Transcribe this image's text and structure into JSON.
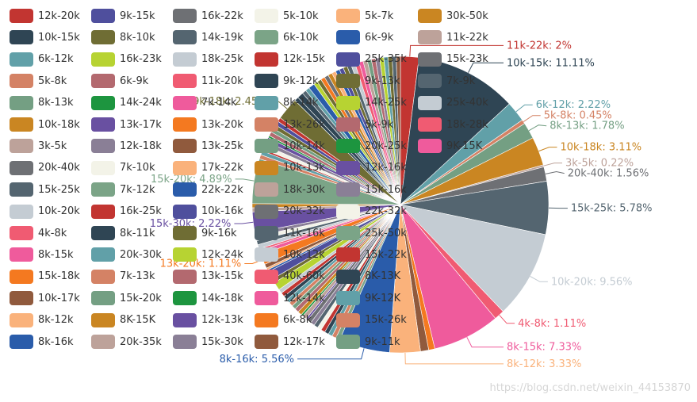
{
  "chart_data": {
    "type": "pie",
    "title": "",
    "slices": [
      {
        "name": "11k-22k",
        "value": 2,
        "color": "#c23531"
      },
      {
        "name": "10k-15k",
        "value": 11.11,
        "color": "#2f4554"
      },
      {
        "name": "6k-12k",
        "value": 2.22,
        "color": "#61a0a8"
      },
      {
        "name": "5k-8k",
        "value": 0.45,
        "color": "#d48265"
      },
      {
        "name": "8k-13k",
        "value": 1.78,
        "color": "#749f83"
      },
      {
        "name": "10k-18k",
        "value": 3.11,
        "color": "#ca8622"
      },
      {
        "name": "3k-5k",
        "value": 0.22,
        "color": "#bda29a"
      },
      {
        "name": "20k-40k",
        "value": 1.56,
        "color": "#6e7074"
      },
      {
        "name": "15k-25k",
        "value": 5.78,
        "color": "#546570"
      },
      {
        "name": "10k-20k",
        "value": 9.56,
        "color": "#c4ccd3"
      },
      {
        "name": "4k-8k",
        "value": 1.11,
        "color": "#f05b72"
      },
      {
        "name": "8k-15k",
        "value": 7.33,
        "color": "#ef5b9c"
      },
      {
        "name": "15k-18k",
        "value": 0.67,
        "color": "#f47920"
      },
      {
        "name": "10k-17k",
        "value": 0.89,
        "color": "#905a3d"
      },
      {
        "name": "8k-12k",
        "value": 3.33,
        "color": "#fab27b"
      },
      {
        "name": "8k-16k",
        "value": 5.56,
        "color": "#2a5caa"
      },
      {
        "name": "9k-11k",
        "value": 0.45,
        "color": "#7ba487"
      },
      {
        "name": "15k-26k",
        "value": 0.45,
        "color": "#d48265"
      },
      {
        "name": "9K-12K",
        "value": 0.45,
        "color": "#61a0a8"
      },
      {
        "name": "8K-13K",
        "value": 0.45,
        "color": "#2f4554"
      },
      {
        "name": "15k-22k",
        "value": 0.45,
        "color": "#c23531"
      },
      {
        "name": "25k-50k",
        "value": 0.45,
        "color": "#f3f3e8"
      },
      {
        "name": "11k-16k",
        "value": 0.45,
        "color": "#546570"
      },
      {
        "name": "22k-32k",
        "value": 0.45,
        "color": "#8a7f96"
      },
      {
        "name": "20k-32k",
        "value": 0.45,
        "color": "#6e7074"
      },
      {
        "name": "15k-16k",
        "value": 0.22,
        "color": "#6950a1"
      },
      {
        "name": "18k-30k",
        "value": 0.45,
        "color": "#bda29a"
      },
      {
        "name": "12k-16k",
        "value": 0.22,
        "color": "#1d953f"
      },
      {
        "name": "10k-13k",
        "value": 0.45,
        "color": "#ca8622"
      },
      {
        "name": "20k-25k",
        "value": 0.45,
        "color": "#b3696f"
      },
      {
        "name": "10k-14k",
        "value": 0.45,
        "color": "#749f83"
      },
      {
        "name": "13k-26k",
        "value": 0.45,
        "color": "#d48265"
      },
      {
        "name": "8k-14k",
        "value": 0.45,
        "color": "#61a0a8"
      },
      {
        "name": "9k-12k",
        "value": 0.45,
        "color": "#2f4554"
      },
      {
        "name": "12k-15k",
        "value": 0.45,
        "color": "#c23531"
      },
      {
        "name": "10k-12k",
        "value": 0.45,
        "color": "#c4ccd3"
      },
      {
        "name": "12k-24k",
        "value": 0.89,
        "color": "#b7d332"
      },
      {
        "name": "9k-16k",
        "value": 0.45,
        "color": "#6f6d34"
      },
      {
        "name": "10k-16k",
        "value": 0.89,
        "color": "#4f4f9d"
      },
      {
        "name": "22k-22k",
        "value": 0.22,
        "color": "#2a5caa"
      },
      {
        "name": "17k-22k",
        "value": 0.22,
        "color": "#fab27b"
      },
      {
        "name": "13k-25k",
        "value": 0.45,
        "color": "#905a3d"
      },
      {
        "name": "13k-20k",
        "value": 1.11,
        "color": "#f47920"
      },
      {
        "name": "7k-14k",
        "value": 0.45,
        "color": "#ef5b9c"
      },
      {
        "name": "11k-20k",
        "value": 0.22,
        "color": "#f05b72"
      },
      {
        "name": "18k-25k",
        "value": 0.45,
        "color": "#c4ccd3"
      },
      {
        "name": "14k-19k",
        "value": 0.45,
        "color": "#546570"
      },
      {
        "name": "6k-10k",
        "value": 0.45,
        "color": "#f3f3e8"
      },
      {
        "name": "5k-10k",
        "value": 0.45,
        "color": "#8a7f96"
      },
      {
        "name": "15k-30k",
        "value": 2.22,
        "color": "#6950a1"
      },
      {
        "name": "20k-35k",
        "value": 0.45,
        "color": "#bda29a"
      },
      {
        "name": "8K-15K",
        "value": 0.45,
        "color": "#ca8622"
      },
      {
        "name": "15k-20k",
        "value": 4.89,
        "color": "#7ba487"
      },
      {
        "name": "7k-13k",
        "value": 0.45,
        "color": "#d48265"
      },
      {
        "name": "20k-30k",
        "value": 0.45,
        "color": "#61a0a8"
      },
      {
        "name": "16k-25k",
        "value": 0.22,
        "color": "#c23531"
      },
      {
        "name": "7k-12k",
        "value": 0.45,
        "color": "#f3f3e8"
      },
      {
        "name": "7k-10k",
        "value": 0.45,
        "color": "#8a7f96"
      },
      {
        "name": "12k-18k",
        "value": 0.45,
        "color": "#6950a1"
      },
      {
        "name": "13k-17k",
        "value": 0.22,
        "color": "#1d953f"
      },
      {
        "name": "13k-15k",
        "value": 0.45,
        "color": "#b3696f"
      },
      {
        "name": "16k-22k",
        "value": 0.45,
        "color": "#749f83"
      },
      {
        "name": "8k-10k",
        "value": 0.45,
        "color": "#6f6d34"
      },
      {
        "name": "9k-15k",
        "value": 0.45,
        "color": "#4f4f9d"
      },
      {
        "name": "12k-20k",
        "value": 0.45,
        "color": "#c23531"
      },
      {
        "name": "9k-18k",
        "value": 2.45,
        "color": "#6f6d34"
      },
      {
        "name": "16k-24k",
        "value": 0.45,
        "color": "#2f4554"
      },
      {
        "name": "8k-11k",
        "value": 0.67,
        "color": "#2f4554"
      },
      {
        "name": "14k-18k",
        "value": 0.45,
        "color": "#546570"
      },
      {
        "name": "12k-13k",
        "value": 0.45,
        "color": "#61a0a8"
      },
      {
        "name": "9k-22k",
        "value": 0.67,
        "color": "#2a5caa"
      },
      {
        "name": "14k-25k",
        "value": 0.45,
        "color": "#b7d332"
      },
      {
        "name": "12k-14k",
        "value": 0.45,
        "color": "#6f6d34"
      },
      {
        "name": "6k-8k",
        "value": 0.45,
        "color": "#f47920"
      },
      {
        "name": "15k-23k",
        "value": 0.45,
        "color": "#6e7074"
      },
      {
        "name": "30k-50k",
        "value": 0.45,
        "color": "#ca8622"
      },
      {
        "name": "5k-7k",
        "value": 0.45,
        "color": "#fab27b"
      },
      {
        "name": "6k-9k",
        "value": 0.45,
        "color": "#2a5caa"
      },
      {
        "name": "25k-35k",
        "value": 0.45,
        "color": "#4f4f9d"
      },
      {
        "name": "9k-13k",
        "value": 0.45,
        "color": "#6f6d34"
      },
      {
        "name": "7k-9k",
        "value": 0.45,
        "color": "#546570"
      },
      {
        "name": "25k-40k",
        "value": 0.45,
        "color": "#c4ccd3"
      },
      {
        "name": "18k-28k",
        "value": 0.45,
        "color": "#f05b72"
      },
      {
        "name": "9K-15K",
        "value": 0.45,
        "color": "#ef5b9c"
      },
      {
        "name": "12k-22k",
        "value": 0.45,
        "color": "#bda29a"
      },
      {
        "name": "5k-9k",
        "value": 0.45,
        "color": "#749f83"
      },
      {
        "name": "14k-20k",
        "value": 0.45,
        "color": "#b3696f"
      },
      {
        "name": "7k-10k",
        "value": 0.45,
        "color": "#8a7f96"
      },
      {
        "name": "12k-24k",
        "value": 0.45,
        "color": "#b7d332"
      },
      {
        "name": "20k-30k",
        "value": 0.45,
        "color": "#61a0a8"
      },
      {
        "name": "40k-60k",
        "value": 0.45,
        "color": "#6f6d34"
      },
      {
        "name": "12k-14k",
        "value": 0.45,
        "color": "#546570"
      },
      {
        "name": "12k-17k",
        "value": 0.45,
        "color": "#905a3d"
      }
    ],
    "legend": {
      "placement": "left",
      "columns": [
        [
          "12k-20k",
          "10k-15k",
          "6k-12k",
          "5k-8k",
          "8k-13k",
          "10k-18k",
          "3k-5k",
          "20k-40k",
          "15k-25k",
          "10k-20k",
          "4k-8k",
          "8k-15k",
          "15k-18k",
          "10k-17k",
          "8k-12k",
          "8k-16k"
        ],
        [
          "9k-15k",
          "8k-10k",
          "16k-23k",
          "6k-9k",
          "14k-24k",
          "13k-17k",
          "12k-18k",
          "7k-10k",
          "7k-12k",
          "16k-25k",
          "8k-11k",
          "20k-30k",
          "7k-13k",
          "15k-20k",
          "8K-15K",
          "20k-35k"
        ],
        [
          "16k-22k",
          "14k-19k",
          "18k-25k",
          "11k-20k",
          "7k-14k",
          "13k-20k",
          "13k-25k",
          "17k-22k",
          "22k-22k",
          "10k-16k",
          "9k-16k",
          "12k-24k",
          "13k-15k",
          "14k-18k",
          "12k-13k",
          "15k-30k"
        ],
        [
          "5k-10k",
          "6k-10k",
          "12k-15k",
          "9k-12k",
          "8k-14k",
          "13k-26k",
          "10k-14k",
          "10k-13k",
          "18k-30k",
          "20k-32k",
          "11k-16k",
          "10k-12k",
          "40k-60k",
          "12k-14k",
          "6k-8k",
          "12k-17k"
        ],
        [
          "5k-7k",
          "6k-9k",
          "25k-35k",
          "9k-13k",
          "14k-25k",
          "5k-9k",
          "20k-25k",
          "12k-16k",
          "15k-16k",
          "22k-32k",
          "25k-50k",
          "15k-22k",
          "8K-13K",
          "9K-12K",
          "15k-26k",
          "9k-11k"
        ],
        [
          "30k-50k",
          "11k-22k",
          "15k-23k",
          "7k-9k",
          "25k-40k",
          "18k-28k",
          "9K-15K"
        ]
      ],
      "colors": [
        "#c23531",
        "#2f4554",
        "#61a0a8",
        "#d48265",
        "#749f83",
        "#ca8622",
        "#bda29a",
        "#6e7074",
        "#546570",
        "#c4ccd3",
        "#f05b72",
        "#ef5b9c",
        "#f47920",
        "#905a3d",
        "#fab27b",
        "#2a5caa",
        "#4f4f9d",
        "#6f6d34",
        "#b7d332",
        "#b3696f",
        "#1d953f",
        "#6950a1",
        "#8a7f96",
        "#f3f3e8",
        "#7ba487"
      ]
    }
  },
  "watermark": "https://blog.csdn.net/weixin_44153870"
}
